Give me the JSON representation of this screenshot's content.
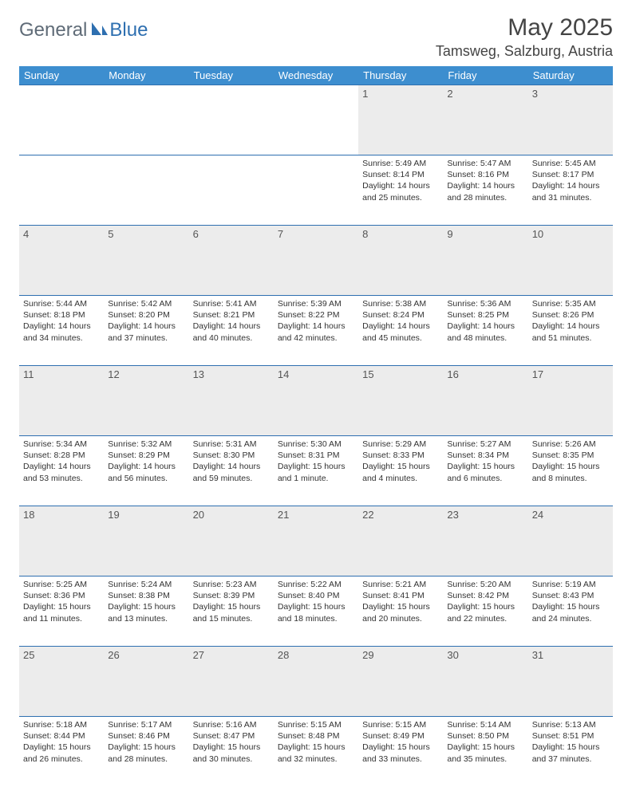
{
  "brand": {
    "part1": "General",
    "part2": "Blue"
  },
  "title": "May 2025",
  "location": "Tamsweg, Salzburg, Austria",
  "colors": {
    "header_bg": "#3d8ecf",
    "border": "#2e6fb0",
    "daynum_bg": "#ececec",
    "text": "#333333",
    "brand_gray": "#5f6b77",
    "brand_blue": "#2e6fb0"
  },
  "weekdays": [
    "Sunday",
    "Monday",
    "Tuesday",
    "Wednesday",
    "Thursday",
    "Friday",
    "Saturday"
  ],
  "weeks": [
    {
      "nums": [
        "",
        "",
        "",
        "",
        "1",
        "2",
        "3"
      ],
      "cells": [
        null,
        null,
        null,
        null,
        {
          "sunrise": "5:49 AM",
          "sunset": "8:14 PM",
          "daylight": "14 hours and 25 minutes."
        },
        {
          "sunrise": "5:47 AM",
          "sunset": "8:16 PM",
          "daylight": "14 hours and 28 minutes."
        },
        {
          "sunrise": "5:45 AM",
          "sunset": "8:17 PM",
          "daylight": "14 hours and 31 minutes."
        }
      ]
    },
    {
      "nums": [
        "4",
        "5",
        "6",
        "7",
        "8",
        "9",
        "10"
      ],
      "cells": [
        {
          "sunrise": "5:44 AM",
          "sunset": "8:18 PM",
          "daylight": "14 hours and 34 minutes."
        },
        {
          "sunrise": "5:42 AM",
          "sunset": "8:20 PM",
          "daylight": "14 hours and 37 minutes."
        },
        {
          "sunrise": "5:41 AM",
          "sunset": "8:21 PM",
          "daylight": "14 hours and 40 minutes."
        },
        {
          "sunrise": "5:39 AM",
          "sunset": "8:22 PM",
          "daylight": "14 hours and 42 minutes."
        },
        {
          "sunrise": "5:38 AM",
          "sunset": "8:24 PM",
          "daylight": "14 hours and 45 minutes."
        },
        {
          "sunrise": "5:36 AM",
          "sunset": "8:25 PM",
          "daylight": "14 hours and 48 minutes."
        },
        {
          "sunrise": "5:35 AM",
          "sunset": "8:26 PM",
          "daylight": "14 hours and 51 minutes."
        }
      ]
    },
    {
      "nums": [
        "11",
        "12",
        "13",
        "14",
        "15",
        "16",
        "17"
      ],
      "cells": [
        {
          "sunrise": "5:34 AM",
          "sunset": "8:28 PM",
          "daylight": "14 hours and 53 minutes."
        },
        {
          "sunrise": "5:32 AM",
          "sunset": "8:29 PM",
          "daylight": "14 hours and 56 minutes."
        },
        {
          "sunrise": "5:31 AM",
          "sunset": "8:30 PM",
          "daylight": "14 hours and 59 minutes."
        },
        {
          "sunrise": "5:30 AM",
          "sunset": "8:31 PM",
          "daylight": "15 hours and 1 minute."
        },
        {
          "sunrise": "5:29 AM",
          "sunset": "8:33 PM",
          "daylight": "15 hours and 4 minutes."
        },
        {
          "sunrise": "5:27 AM",
          "sunset": "8:34 PM",
          "daylight": "15 hours and 6 minutes."
        },
        {
          "sunrise": "5:26 AM",
          "sunset": "8:35 PM",
          "daylight": "15 hours and 8 minutes."
        }
      ]
    },
    {
      "nums": [
        "18",
        "19",
        "20",
        "21",
        "22",
        "23",
        "24"
      ],
      "cells": [
        {
          "sunrise": "5:25 AM",
          "sunset": "8:36 PM",
          "daylight": "15 hours and 11 minutes."
        },
        {
          "sunrise": "5:24 AM",
          "sunset": "8:38 PM",
          "daylight": "15 hours and 13 minutes."
        },
        {
          "sunrise": "5:23 AM",
          "sunset": "8:39 PM",
          "daylight": "15 hours and 15 minutes."
        },
        {
          "sunrise": "5:22 AM",
          "sunset": "8:40 PM",
          "daylight": "15 hours and 18 minutes."
        },
        {
          "sunrise": "5:21 AM",
          "sunset": "8:41 PM",
          "daylight": "15 hours and 20 minutes."
        },
        {
          "sunrise": "5:20 AM",
          "sunset": "8:42 PM",
          "daylight": "15 hours and 22 minutes."
        },
        {
          "sunrise": "5:19 AM",
          "sunset": "8:43 PM",
          "daylight": "15 hours and 24 minutes."
        }
      ]
    },
    {
      "nums": [
        "25",
        "26",
        "27",
        "28",
        "29",
        "30",
        "31"
      ],
      "cells": [
        {
          "sunrise": "5:18 AM",
          "sunset": "8:44 PM",
          "daylight": "15 hours and 26 minutes."
        },
        {
          "sunrise": "5:17 AM",
          "sunset": "8:46 PM",
          "daylight": "15 hours and 28 minutes."
        },
        {
          "sunrise": "5:16 AM",
          "sunset": "8:47 PM",
          "daylight": "15 hours and 30 minutes."
        },
        {
          "sunrise": "5:15 AM",
          "sunset": "8:48 PM",
          "daylight": "15 hours and 32 minutes."
        },
        {
          "sunrise": "5:15 AM",
          "sunset": "8:49 PM",
          "daylight": "15 hours and 33 minutes."
        },
        {
          "sunrise": "5:14 AM",
          "sunset": "8:50 PM",
          "daylight": "15 hours and 35 minutes."
        },
        {
          "sunrise": "5:13 AM",
          "sunset": "8:51 PM",
          "daylight": "15 hours and 37 minutes."
        }
      ]
    }
  ],
  "labels": {
    "sunrise": "Sunrise: ",
    "sunset": "Sunset: ",
    "daylight": "Daylight: "
  }
}
